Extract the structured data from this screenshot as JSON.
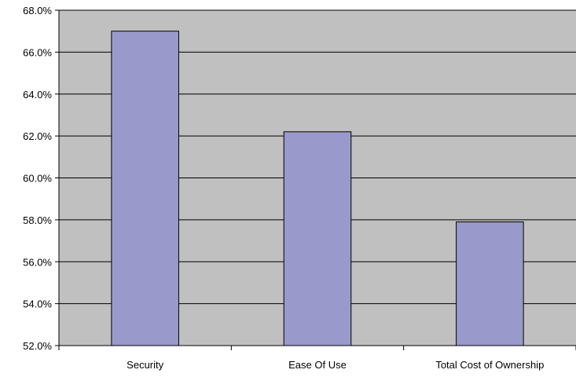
{
  "chart_data": {
    "type": "bar",
    "title": "",
    "xlabel": "",
    "ylabel": "",
    "categories": [
      "Security",
      "Ease Of Use",
      "Total Cost of Ownership"
    ],
    "values": [
      67.0,
      62.2,
      57.9
    ],
    "ylim": [
      52.0,
      68.0
    ],
    "yticks": [
      52.0,
      54.0,
      56.0,
      58.0,
      60.0,
      62.0,
      64.0,
      66.0,
      68.0
    ],
    "ytick_labels": [
      "52.0%",
      "54.0%",
      "56.0%",
      "58.0%",
      "60.0%",
      "62.0%",
      "64.0%",
      "66.0%",
      "68.0%"
    ],
    "grid": true,
    "legend": "none",
    "colors": {
      "plot_background": "#c0c0c0",
      "bar_fill": "#9999cc",
      "bar_stroke": "#000000",
      "gridline": "#000000",
      "axis": "#000000"
    }
  }
}
